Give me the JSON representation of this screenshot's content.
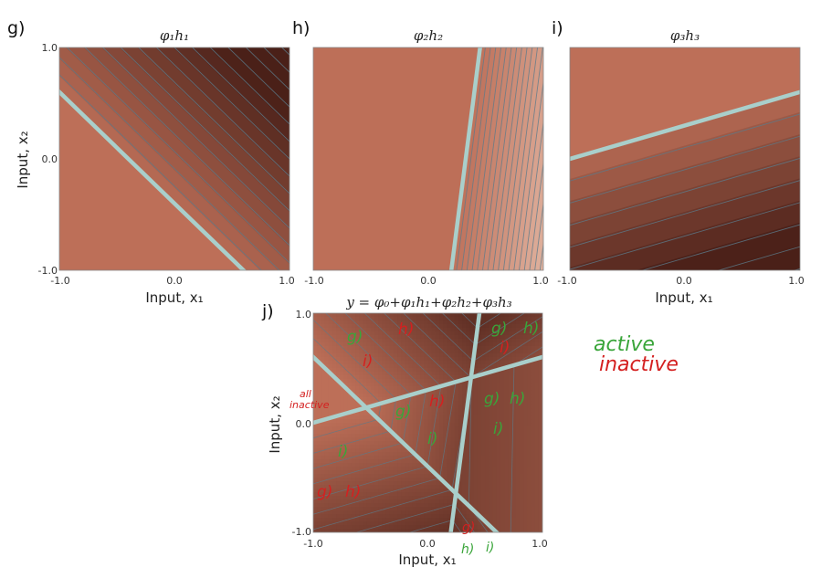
{
  "panels": [
    {
      "letter": "g)",
      "title": "φ₁h₁",
      "ylabel": "Input, x₂",
      "xlabel": "Input, x₁",
      "xticks": [
        "-1.0",
        "0.0",
        "1.0"
      ],
      "yticks": [
        "1.0",
        "0.0",
        "-1.0"
      ]
    },
    {
      "letter": "h)",
      "title": "φ₂h₂",
      "ylabel": "",
      "xlabel": "",
      "xticks": [
        "-1.0",
        "0.0",
        "1.0"
      ],
      "yticks": []
    },
    {
      "letter": "i)",
      "title": "φ₃h₃",
      "ylabel": "",
      "xlabel": "Input, x₁",
      "xticks": [
        "-1.0",
        "0.0",
        "1.0"
      ],
      "yticks": []
    },
    {
      "letter": "j)",
      "title": "y = φ₀+φ₁h₁+φ₂h₂+φ₃h₃",
      "ylabel": "Input, x₂",
      "xlabel": "Input, x₁",
      "xticks": [
        "-1.0",
        "0.0",
        "1.0"
      ],
      "yticks": [
        "1.0",
        "0.0",
        "-1.0"
      ]
    }
  ],
  "legend": {
    "active": "active",
    "inactive": "inactive"
  },
  "annotations": [
    {
      "text": "g)",
      "color": "#3aa53a"
    },
    {
      "text": "h)",
      "color": "#d42020"
    },
    {
      "text": "i)",
      "color": "#d42020"
    },
    {
      "text": "g)",
      "color": "#3aa53a"
    },
    {
      "text": "h)",
      "color": "#3aa53a"
    },
    {
      "text": "i)",
      "color": "#d42020"
    },
    {
      "text": "all",
      "color": "#d42020"
    },
    {
      "text": "inactive",
      "color": "#d42020"
    },
    {
      "text": "g)",
      "color": "#3aa53a"
    },
    {
      "text": "h)",
      "color": "#d42020"
    },
    {
      "text": "g)",
      "color": "#3aa53a"
    },
    {
      "text": "h)",
      "color": "#3aa53a"
    },
    {
      "text": "i)",
      "color": "#3aa53a"
    },
    {
      "text": "i)",
      "color": "#3aa53a"
    },
    {
      "text": "i)",
      "color": "#3aa53a"
    },
    {
      "text": "g)",
      "color": "#d42020"
    },
    {
      "text": "h)",
      "color": "#d42020"
    },
    {
      "text": "g)",
      "color": "#d42020"
    },
    {
      "text": "h)",
      "color": "#3aa53a"
    },
    {
      "text": "i)",
      "color": "#3aa53a"
    }
  ],
  "chart_data": [
    {
      "type": "heatmap",
      "panel": "g",
      "function": "phi1*h1",
      "xlim": [
        -1,
        1
      ],
      "ylim": [
        -1,
        1
      ],
      "joint": {
        "x": [
          -1.0,
          0.6
        ],
        "y": [
          0.6,
          -1.0
        ]
      },
      "active_side": "upper-right",
      "contour_spacing": 0.11
    },
    {
      "type": "heatmap",
      "panel": "h",
      "function": "phi2*h2",
      "xlim": [
        -1,
        1
      ],
      "ylim": [
        -1,
        1
      ],
      "joint": {
        "x": [
          0.2,
          0.45
        ],
        "y": [
          -1.0,
          1.0
        ]
      },
      "active_side": "right",
      "contour_spacing": 0.045
    },
    {
      "type": "heatmap",
      "panel": "i",
      "function": "phi3*h3",
      "xlim": [
        -1,
        1
      ],
      "ylim": [
        -1,
        1
      ],
      "joint": {
        "x": [
          -1.0,
          1.0
        ],
        "y": [
          0.0,
          0.6
        ]
      },
      "active_side": "below",
      "contour_spacing": 0.19
    },
    {
      "type": "heatmap",
      "panel": "j",
      "function": "phi0+phi1*h1+phi2*h2+phi3*h3",
      "xlim": [
        -1,
        1
      ],
      "ylim": [
        -1,
        1
      ],
      "joints": [
        {
          "x": [
            -1.0,
            0.6
          ],
          "y": [
            0.6,
            -1.0
          ]
        },
        {
          "x": [
            0.2,
            0.45
          ],
          "y": [
            -1.0,
            1.0
          ]
        },
        {
          "x": [
            -1.0,
            1.0
          ],
          "y": [
            0.0,
            0.6
          ]
        }
      ]
    }
  ],
  "colors": {
    "base": "#bd6f58",
    "dark": "#4a2018",
    "light": "#f6dccb",
    "joint_line": "#a9cfcb",
    "contour": "#5c7b8a"
  }
}
